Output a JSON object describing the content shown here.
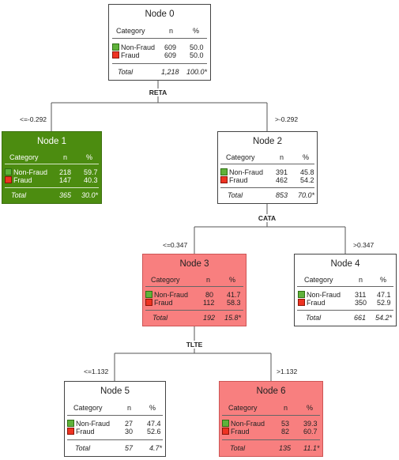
{
  "table_headers": {
    "category": "Category",
    "n": "n",
    "pct": "%"
  },
  "legend_colors": {
    "non_fraud": "#5fb23a",
    "fraud": "#ee3322"
  },
  "splits": {
    "reta": "RETA",
    "cata": "CATA",
    "tlte": "TLTE"
  },
  "edge_labels": {
    "n0_left": "<=-0.292",
    "n0_right": ">-0.292",
    "n2_left": "<=0.347",
    "n2_right": ">0.347",
    "n3_left": "<=1.132",
    "n3_right": ">1.132"
  },
  "nodes": [
    {
      "title": "Node 0",
      "fill": "#ffffff",
      "rows": [
        {
          "category": "Non-Fraud",
          "n": "609",
          "pct": "50.0"
        },
        {
          "category": "Fraud",
          "n": "609",
          "pct": "50.0"
        }
      ],
      "total": {
        "label": "Total",
        "n": "1,218",
        "pct": "100.0*"
      }
    },
    {
      "title": "Node 1",
      "fill": "#4c8c10",
      "rows": [
        {
          "category": "Non-Fraud",
          "n": "218",
          "pct": "59.7"
        },
        {
          "category": "Fraud",
          "n": "147",
          "pct": "40.3"
        }
      ],
      "total": {
        "label": "Total",
        "n": "365",
        "pct": "30.0*"
      }
    },
    {
      "title": "Node 2",
      "fill": "#ffffff",
      "rows": [
        {
          "category": "Non-Fraud",
          "n": "391",
          "pct": "45.8"
        },
        {
          "category": "Fraud",
          "n": "462",
          "pct": "54.2"
        }
      ],
      "total": {
        "label": "Total",
        "n": "853",
        "pct": "70.0*"
      }
    },
    {
      "title": "Node 3",
      "fill": "#f87f7f",
      "rows": [
        {
          "category": "Non-Fraud",
          "n": "80",
          "pct": "41.7"
        },
        {
          "category": "Fraud",
          "n": "112",
          "pct": "58.3"
        }
      ],
      "total": {
        "label": "Total",
        "n": "192",
        "pct": "15.8*"
      }
    },
    {
      "title": "Node 4",
      "fill": "#ffffff",
      "rows": [
        {
          "category": "Non-Fraud",
          "n": "311",
          "pct": "47.1"
        },
        {
          "category": "Fraud",
          "n": "350",
          "pct": "52.9"
        }
      ],
      "total": {
        "label": "Total",
        "n": "661",
        "pct": "54.2*"
      }
    },
    {
      "title": "Node 5",
      "fill": "#ffffff",
      "rows": [
        {
          "category": "Non-Fraud",
          "n": "27",
          "pct": "47.4"
        },
        {
          "category": "Fraud",
          "n": "30",
          "pct": "52.6"
        }
      ],
      "total": {
        "label": "Total",
        "n": "57",
        "pct": "4.7*"
      }
    },
    {
      "title": "Node 6",
      "fill": "#f87f7f",
      "rows": [
        {
          "category": "Non-Fraud",
          "n": "53",
          "pct": "39.3"
        },
        {
          "category": "Fraud",
          "n": "82",
          "pct": "60.7"
        }
      ],
      "total": {
        "label": "Total",
        "n": "135",
        "pct": "11.1*"
      }
    }
  ]
}
